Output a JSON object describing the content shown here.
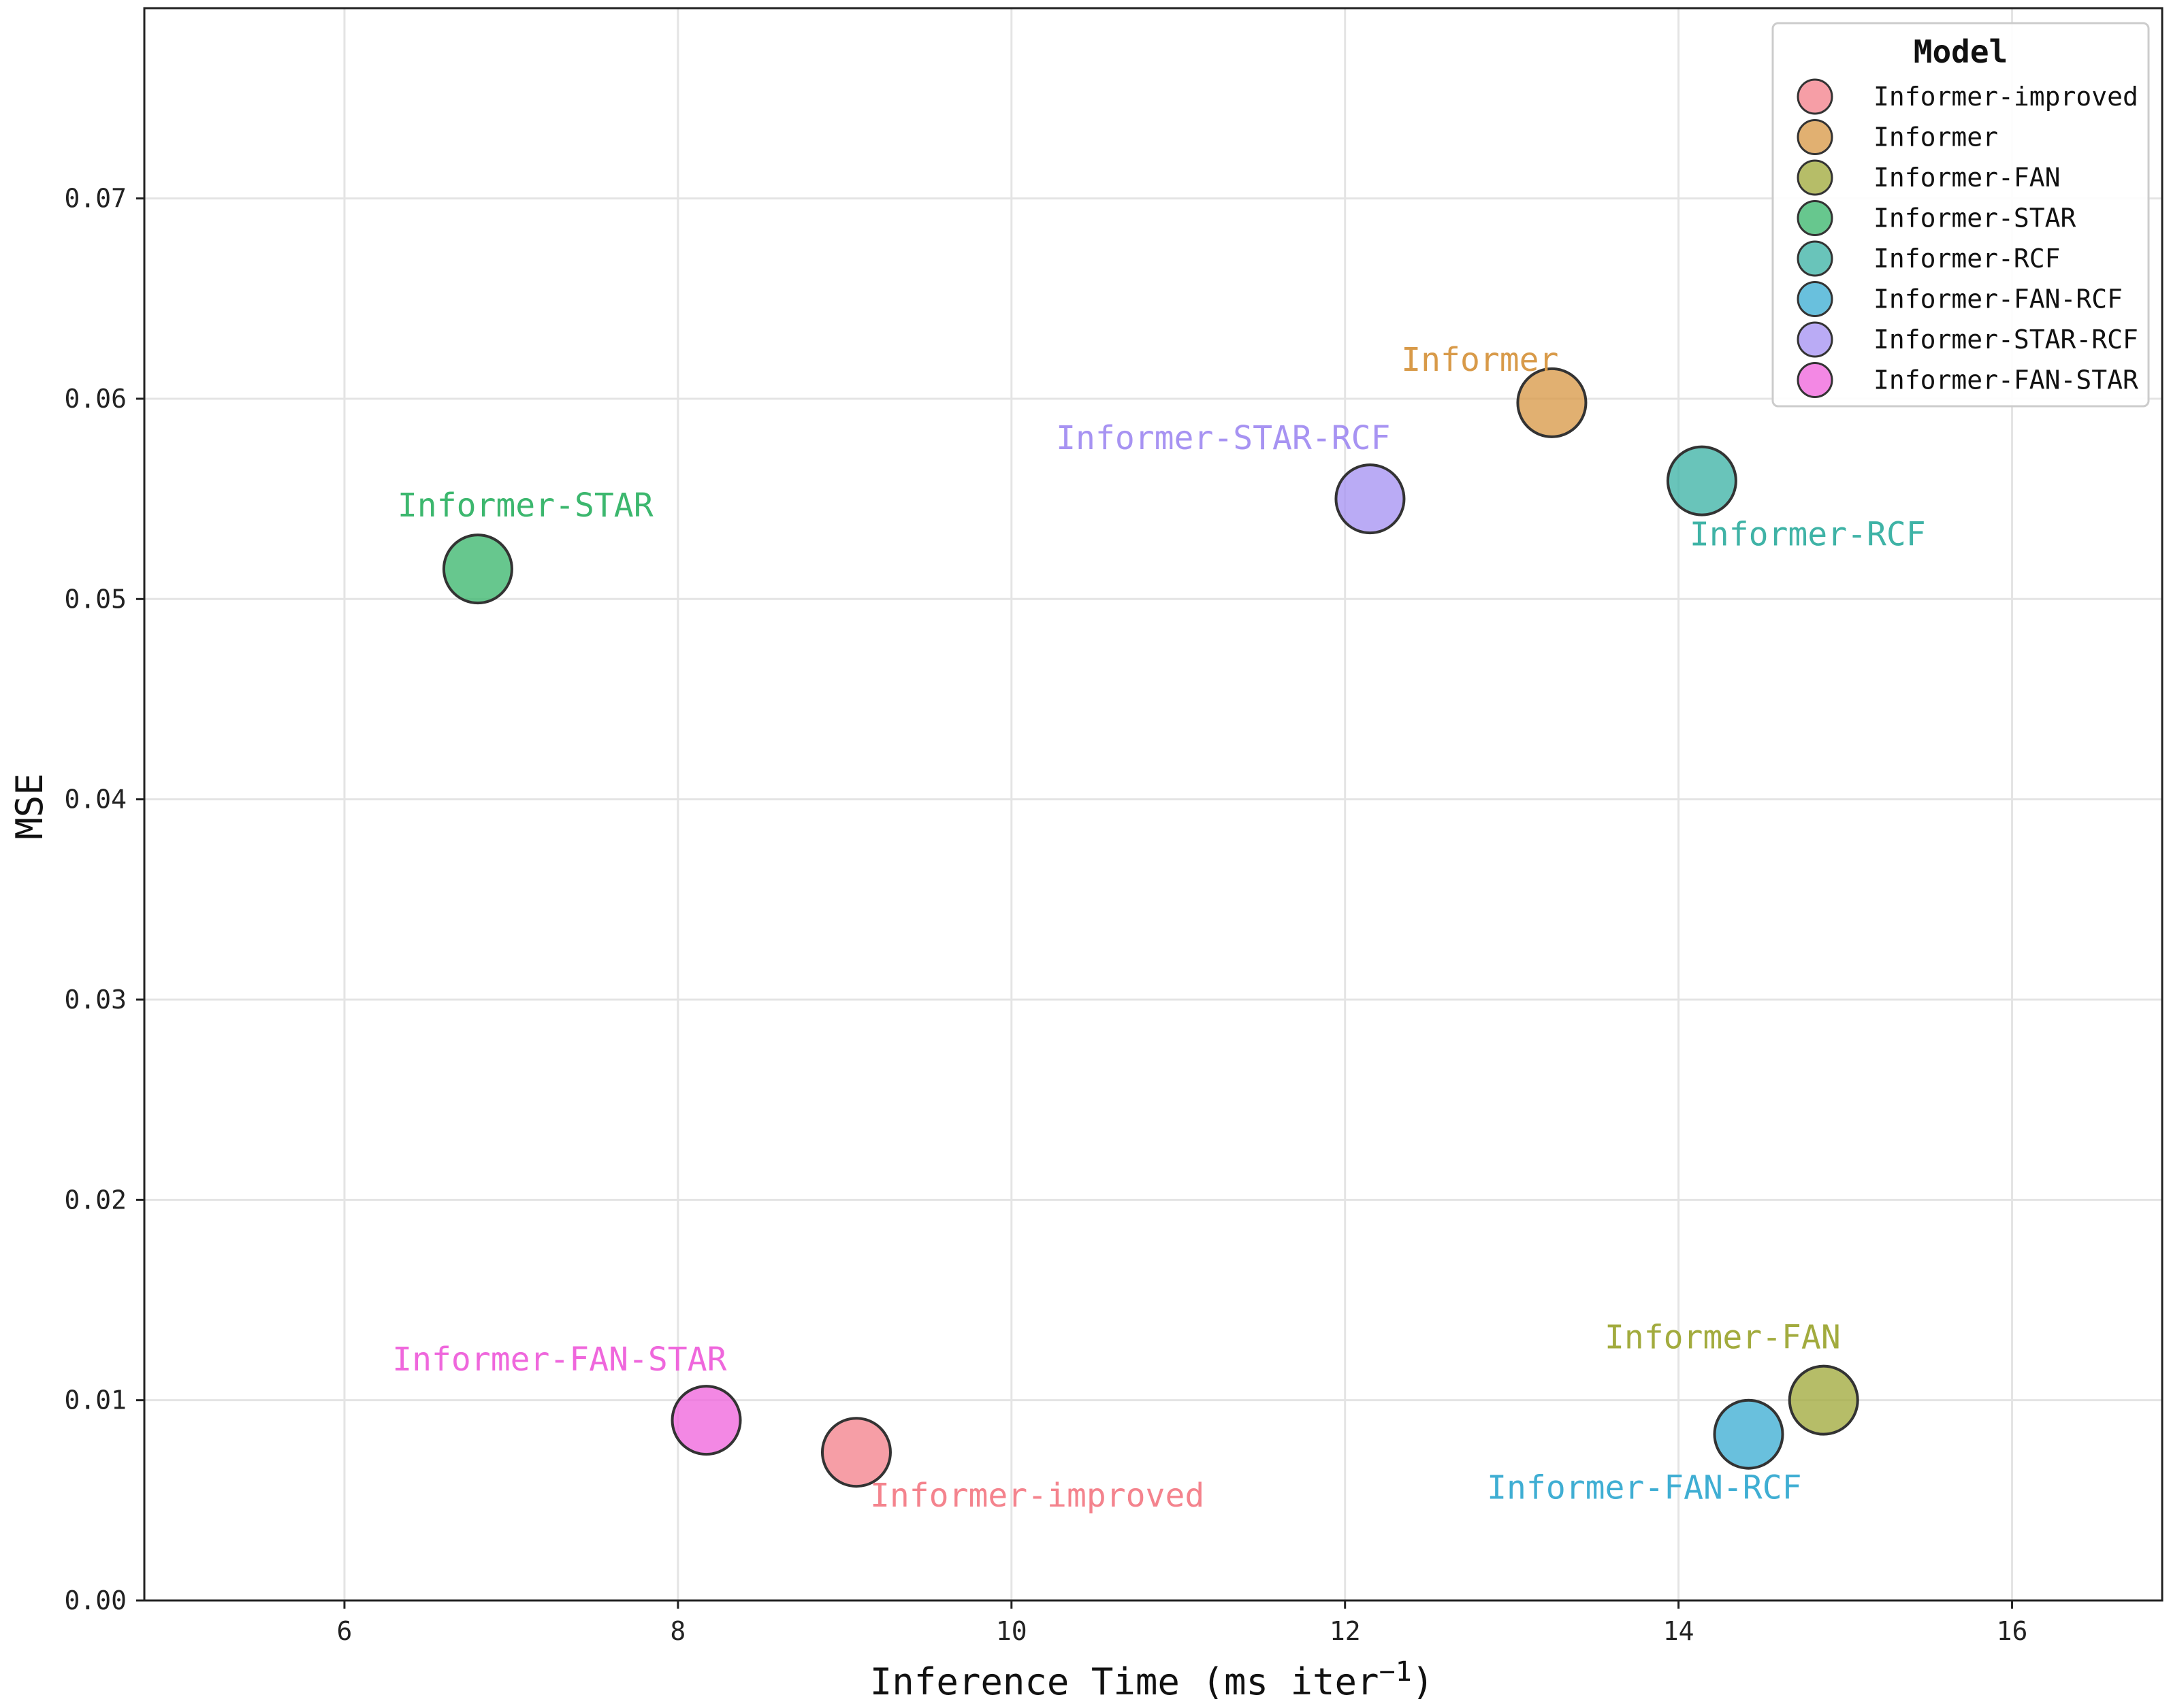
{
  "chart_data": {
    "type": "scatter",
    "title": "",
    "xlabel": "Inference Time (ms iter",
    "xlabel_superscript": "−1",
    "xlabel_suffix": ")",
    "ylabel": "MSE",
    "xlim": [
      4.8,
      16.9
    ],
    "ylim": [
      0.0,
      0.0795
    ],
    "x_ticks": [
      6,
      8,
      10,
      12,
      14,
      16
    ],
    "x_tick_labels": [
      "6",
      "8",
      "10",
      "12",
      "14",
      "16"
    ],
    "y_ticks": [
      0.0,
      0.01,
      0.02,
      0.03,
      0.04,
      0.05,
      0.06,
      0.07
    ],
    "y_tick_labels": [
      "0.00",
      "0.01",
      "0.02",
      "0.03",
      "0.04",
      "0.05",
      "0.06",
      "0.07"
    ],
    "grid": true,
    "legend": {
      "title": "Model",
      "position": "top-right"
    },
    "series": [
      {
        "name": "Informer-improved",
        "x": 9.07,
        "y": 0.0074,
        "color": "#f4838d",
        "label_text": "Informer-improved",
        "label_placement": "below-right"
      },
      {
        "name": "Informer",
        "x": 13.24,
        "y": 0.0598,
        "color": "#d89a49",
        "label_text": "Informer",
        "label_placement": "above-left"
      },
      {
        "name": "Informer-FAN",
        "x": 14.87,
        "y": 0.01,
        "color": "#a2ab3e",
        "label_text": "Informer-FAN",
        "label_placement": "above-left"
      },
      {
        "name": "Informer-STAR",
        "x": 6.8,
        "y": 0.0515,
        "color": "#3cb76e",
        "label_text": "Informer-STAR",
        "label_placement": "above-right"
      },
      {
        "name": "Informer-RCF",
        "x": 14.14,
        "y": 0.0559,
        "color": "#3fb3a6",
        "label_text": "Informer-RCF",
        "label_placement": "below-right"
      },
      {
        "name": "Informer-FAN-RCF",
        "x": 14.42,
        "y": 0.0083,
        "color": "#3faed3",
        "label_text": "Informer-FAN-RCF",
        "label_placement": "below-left"
      },
      {
        "name": "Informer-STAR-RCF",
        "x": 12.15,
        "y": 0.055,
        "color": "#a793f2",
        "label_text": "Informer-STAR-RCF",
        "label_placement": "above-left"
      },
      {
        "name": "Informer-FAN-STAR",
        "x": 8.17,
        "y": 0.009,
        "color": "#ef67dc",
        "label_text": "Informer-FAN-STAR",
        "label_placement": "above-left"
      }
    ]
  }
}
